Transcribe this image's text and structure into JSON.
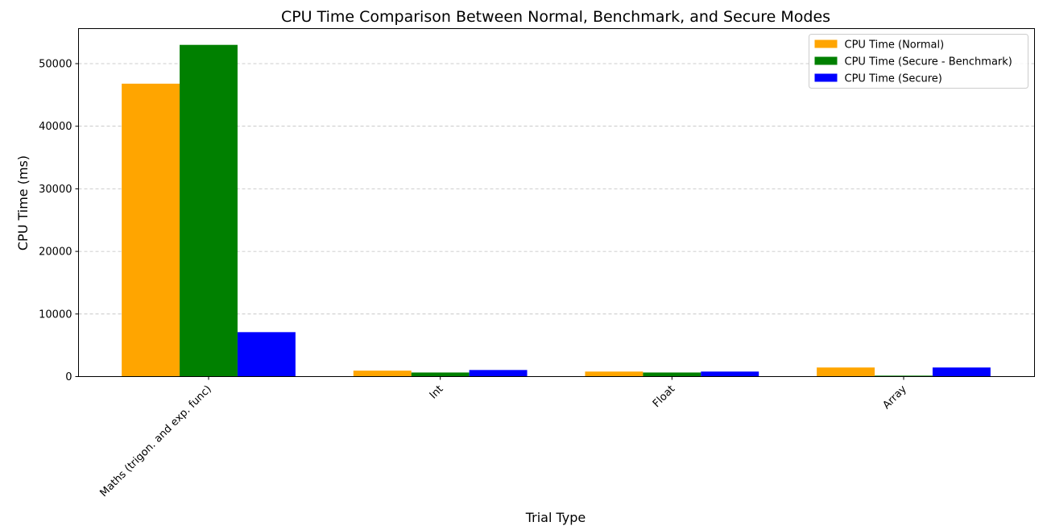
{
  "chart_data": {
    "type": "bar",
    "title": "CPU Time Comparison Between Normal, Benchmark, and Secure Modes",
    "xlabel": "Trial Type",
    "ylabel": "CPU Time (ms)",
    "categories": [
      "Maths (trigon. and exp. func)",
      "Int",
      "Float",
      "Array"
    ],
    "series": [
      {
        "name": "CPU Time (Normal)",
        "color": "#FFA500",
        "values": [
          46800,
          950,
          800,
          1450
        ]
      },
      {
        "name": "CPU Time (Secure - Benchmark)",
        "color": "#008000",
        "values": [
          53000,
          650,
          650,
          150
        ]
      },
      {
        "name": "CPU Time (Secure)",
        "color": "#0000FF",
        "values": [
          7100,
          1050,
          800,
          1450
        ]
      }
    ],
    "ylim": [
      0,
      55600
    ],
    "yticks": [
      0,
      10000,
      20000,
      30000,
      40000,
      50000
    ],
    "grid": "y-dashed",
    "legend": "top-right"
  }
}
